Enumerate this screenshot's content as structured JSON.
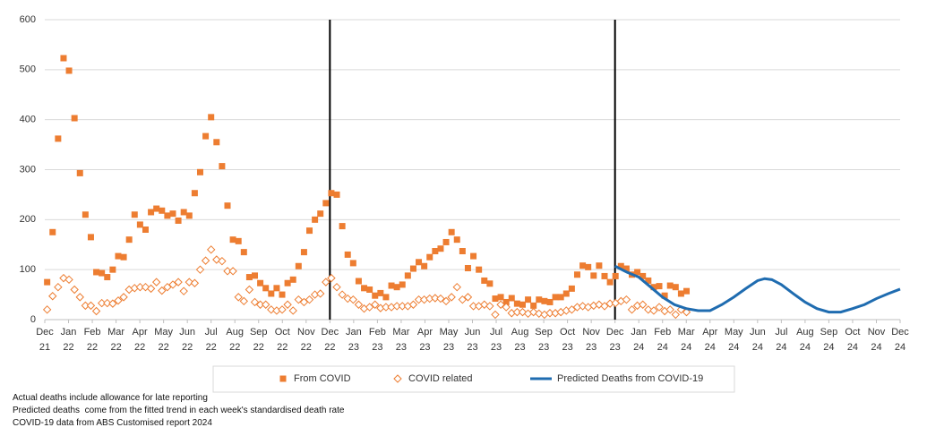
{
  "chart_data": {
    "type": "scatter",
    "xlim": [
      0,
      36
    ],
    "ylim": [
      0,
      600
    ],
    "yticks": [
      0,
      100,
      200,
      300,
      400,
      500,
      600
    ],
    "grid": true,
    "xticks": [
      {
        "value": 0,
        "label": "Dec 21"
      },
      {
        "value": 1,
        "label": "Jan 22"
      },
      {
        "value": 2,
        "label": "Feb 22"
      },
      {
        "value": 3,
        "label": "Mar 22"
      },
      {
        "value": 4,
        "label": "Apr 22"
      },
      {
        "value": 5,
        "label": "May 22"
      },
      {
        "value": 6,
        "label": "Jun 22"
      },
      {
        "value": 7,
        "label": "Jul 22"
      },
      {
        "value": 8,
        "label": "Aug 22"
      },
      {
        "value": 9,
        "label": "Sep 22"
      },
      {
        "value": 10,
        "label": "Oct 22"
      },
      {
        "value": 11,
        "label": "Nov 22"
      },
      {
        "value": 12,
        "label": "Dec 22"
      },
      {
        "value": 13,
        "label": "Jan 23"
      },
      {
        "value": 14,
        "label": "Feb 23"
      },
      {
        "value": 15,
        "label": "Mar 23"
      },
      {
        "value": 16,
        "label": "Apr 23"
      },
      {
        "value": 17,
        "label": "May 23"
      },
      {
        "value": 18,
        "label": "Jun 23"
      },
      {
        "value": 19,
        "label": "Jul 23"
      },
      {
        "value": 20,
        "label": "Aug 23"
      },
      {
        "value": 21,
        "label": "Sep 23"
      },
      {
        "value": 22,
        "label": "Oct 23"
      },
      {
        "value": 23,
        "label": "Nov 23"
      },
      {
        "value": 24,
        "label": "Dec 23"
      },
      {
        "value": 25,
        "label": "Jan 24"
      },
      {
        "value": 26,
        "label": "Feb 24"
      },
      {
        "value": 27,
        "label": "Mar 24"
      },
      {
        "value": 28,
        "label": "Apr 24"
      },
      {
        "value": 29,
        "label": "May 24"
      },
      {
        "value": 30,
        "label": "Jun 24"
      },
      {
        "value": 31,
        "label": "Jul 24"
      },
      {
        "value": 32,
        "label": "Aug 24"
      },
      {
        "value": 33,
        "label": "Sep 24"
      },
      {
        "value": 34,
        "label": "Oct 24"
      },
      {
        "value": 35,
        "label": "Nov 24"
      },
      {
        "value": 36,
        "label": "Dec 24"
      }
    ],
    "vlines": [
      12,
      24
    ],
    "x": [
      0.1,
      0.33,
      0.56,
      0.79,
      1.02,
      1.25,
      1.48,
      1.71,
      1.94,
      2.17,
      2.4,
      2.63,
      2.86,
      3.09,
      3.32,
      3.55,
      3.78,
      4.01,
      4.24,
      4.47,
      4.7,
      4.93,
      5.16,
      5.39,
      5.62,
      5.85,
      6.08,
      6.31,
      6.54,
      6.77,
      7.0,
      7.23,
      7.46,
      7.69,
      7.92,
      8.15,
      8.38,
      8.61,
      8.84,
      9.07,
      9.3,
      9.53,
      9.76,
      9.99,
      10.22,
      10.45,
      10.68,
      10.91,
      11.14,
      11.37,
      11.6,
      11.83,
      12.06,
      12.29,
      12.52,
      12.75,
      12.98,
      13.21,
      13.44,
      13.67,
      13.9,
      14.13,
      14.36,
      14.59,
      14.82,
      15.05,
      15.28,
      15.51,
      15.74,
      15.97,
      16.2,
      16.43,
      16.66,
      16.89,
      17.12,
      17.35,
      17.58,
      17.81,
      18.04,
      18.27,
      18.5,
      18.73,
      18.96,
      19.19,
      19.42,
      19.65,
      19.88,
      20.11,
      20.34,
      20.57,
      20.8,
      21.03,
      21.26,
      21.49,
      21.72,
      21.95,
      22.18,
      22.41,
      22.64,
      22.87,
      23.1,
      23.33,
      23.56,
      23.79,
      24.02,
      24.25,
      24.48,
      24.71,
      24.94,
      25.17,
      25.4,
      25.63,
      25.86,
      26.09,
      26.32,
      26.55,
      26.78,
      27.01
    ],
    "series": [
      {
        "name": "From COVID",
        "style": "square",
        "color": "#ED7D31",
        "values": [
          75,
          175,
          362,
          523,
          498,
          403,
          293,
          210,
          165,
          95,
          93,
          85,
          100,
          127,
          125,
          160,
          210,
          190,
          180,
          215,
          222,
          218,
          208,
          212,
          198,
          215,
          208,
          253,
          295,
          367,
          405,
          355,
          307,
          228,
          160,
          157,
          135,
          85,
          88,
          73,
          63,
          52,
          63,
          50,
          73,
          80,
          107,
          135,
          178,
          200,
          212,
          233,
          253,
          250,
          187,
          130,
          113,
          77,
          63,
          60,
          48,
          53,
          45,
          68,
          65,
          70,
          88,
          102,
          115,
          107,
          125,
          137,
          142,
          155,
          175,
          160,
          137,
          103,
          127,
          100,
          78,
          72,
          42,
          45,
          35,
          43,
          32,
          30,
          40,
          28,
          40,
          37,
          35,
          45,
          45,
          52,
          62,
          90,
          108,
          105,
          88,
          108,
          87,
          75,
          87,
          107,
          102,
          90,
          95,
          87,
          78,
          65,
          67,
          48,
          68,
          65,
          52,
          57
        ]
      },
      {
        "name": "COVID related",
        "style": "diamond",
        "color": "#ED7D31",
        "values": [
          20,
          47,
          65,
          83,
          80,
          60,
          45,
          28,
          28,
          17,
          33,
          33,
          32,
          38,
          45,
          60,
          63,
          65,
          65,
          62,
          75,
          58,
          65,
          70,
          75,
          57,
          75,
          73,
          100,
          118,
          140,
          120,
          117,
          97,
          97,
          45,
          37,
          60,
          35,
          30,
          30,
          20,
          18,
          20,
          30,
          18,
          40,
          35,
          40,
          50,
          52,
          75,
          83,
          65,
          50,
          42,
          40,
          30,
          22,
          25,
          30,
          23,
          25,
          25,
          27,
          27,
          27,
          30,
          40,
          40,
          42,
          43,
          42,
          37,
          45,
          65,
          40,
          45,
          27,
          27,
          30,
          27,
          10,
          30,
          25,
          13,
          15,
          15,
          12,
          15,
          12,
          10,
          13,
          13,
          15,
          18,
          20,
          25,
          27,
          25,
          28,
          30,
          27,
          32,
          33,
          37,
          40,
          20,
          28,
          30,
          20,
          18,
          25,
          17,
          20,
          10,
          20,
          15
        ]
      },
      {
        "name": "Predicted Deaths from COVID-19",
        "style": "line",
        "color": "#1F6CB0",
        "x": [
          24,
          24.5,
          25,
          25.5,
          26,
          26.5,
          27,
          27.5,
          28,
          28.5,
          29,
          29.5,
          30,
          30.3,
          30.6,
          31,
          31.5,
          32,
          32.5,
          33,
          33.5,
          34,
          34.5,
          35,
          35.5,
          36
        ],
        "values": [
          107,
          95,
          85,
          65,
          45,
          30,
          22,
          18,
          18,
          30,
          45,
          62,
          78,
          82,
          80,
          70,
          52,
          35,
          22,
          15,
          15,
          22,
          30,
          42,
          52,
          61
        ]
      }
    ],
    "notes": [
      "Actual deaths include allowance for late reporting",
      "Predicted deaths  come from the fitted trend in each week's standardised death rate",
      "COVID-19 data from ABS Customised report 2024"
    ]
  }
}
